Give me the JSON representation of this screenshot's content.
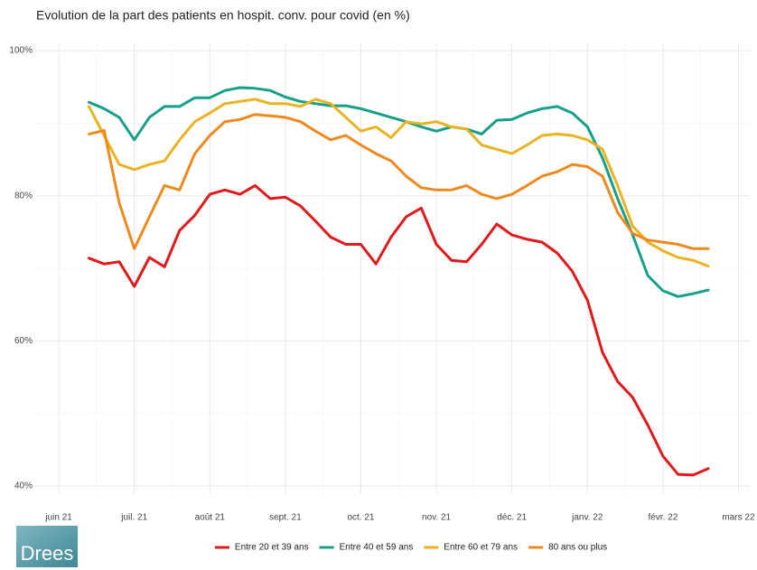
{
  "chart_data": {
    "type": "line",
    "title": "Evolution de la part des patients en hospit. conv. pour covid (en %)",
    "logo": "Drees",
    "x": [
      0.4,
      0.6,
      0.8,
      1.0,
      1.2,
      1.4,
      1.6,
      1.8,
      2.0,
      2.2,
      2.4,
      2.6,
      2.8,
      3.0,
      3.2,
      3.4,
      3.6,
      3.8,
      4.0,
      4.2,
      4.4,
      4.6,
      4.8,
      5.0,
      5.2,
      5.4,
      5.6,
      5.8,
      6.0,
      6.2,
      6.4,
      6.6,
      6.8,
      7.0,
      7.2,
      7.4,
      7.6,
      7.8,
      8.0,
      8.2,
      8.4,
      8.6
    ],
    "xlim": [
      -0.3,
      9.15
    ],
    "xticks": [
      {
        "value": 0,
        "label": "juin 21"
      },
      {
        "value": 1,
        "label": "juil. 21"
      },
      {
        "value": 2,
        "label": "août 21"
      },
      {
        "value": 3,
        "label": "sept. 21"
      },
      {
        "value": 4,
        "label": "oct. 21"
      },
      {
        "value": 5,
        "label": "nov. 21"
      },
      {
        "value": 6,
        "label": "déc. 21"
      },
      {
        "value": 7,
        "label": "janv. 22"
      },
      {
        "value": 8,
        "label": "févr. 22"
      },
      {
        "value": 9,
        "label": "mars 22"
      }
    ],
    "minor_xticks": [
      0.5,
      1.5,
      2.5,
      3.5,
      4.5,
      5.5,
      6.5,
      7.5,
      8.5
    ],
    "ylim": [
      39,
      101
    ],
    "yticks": [
      {
        "value": 40,
        "label": "40%"
      },
      {
        "value": 60,
        "label": "60%"
      },
      {
        "value": 80,
        "label": "80%"
      },
      {
        "value": 100,
        "label": "100%"
      }
    ],
    "minor_yticks": [
      50,
      70,
      90
    ],
    "grid": true,
    "legend": "bottom",
    "series": [
      {
        "name": "Entre 20 et 39 ans",
        "color": "#e0191c",
        "values": [
          71.4,
          70.6,
          70.9,
          67.5,
          71.5,
          70.2,
          75.2,
          77.3,
          80.2,
          80.8,
          80.2,
          81.4,
          79.6,
          79.8,
          78.6,
          76.5,
          74.3,
          73.3,
          73.3,
          70.6,
          74.3,
          77.1,
          78.3,
          73.3,
          71.1,
          70.9,
          73.3,
          76.1,
          74.6,
          74.0,
          73.6,
          72.1,
          69.6,
          65.6,
          58.4,
          54.4,
          52.2,
          48.4,
          44.1,
          41.6,
          41.5,
          42.4
        ]
      },
      {
        "name": "Entre 40 et 59 ans",
        "color": "#16a08a",
        "values": [
          92.9,
          92.0,
          90.8,
          87.7,
          90.8,
          92.3,
          92.3,
          93.5,
          93.5,
          94.5,
          94.9,
          94.8,
          94.5,
          93.6,
          93.0,
          92.7,
          92.4,
          92.4,
          92.0,
          91.4,
          90.8,
          90.2,
          89.5,
          88.9,
          89.5,
          89.2,
          88.5,
          90.4,
          90.5,
          91.4,
          92.0,
          92.3,
          91.4,
          89.5,
          85.2,
          79.6,
          74.6,
          69.0,
          66.9,
          66.1,
          66.5,
          67.0
        ]
      },
      {
        "name": "Entre 60 et 79 ans",
        "color": "#eab321",
        "values": [
          92.3,
          88.3,
          84.3,
          83.6,
          84.3,
          84.8,
          87.7,
          90.2,
          91.4,
          92.7,
          93.0,
          93.3,
          92.7,
          92.7,
          92.3,
          93.3,
          92.7,
          90.8,
          88.9,
          89.5,
          88.0,
          90.2,
          89.9,
          90.2,
          89.5,
          89.2,
          87.0,
          86.4,
          85.8,
          87.0,
          88.3,
          88.5,
          88.3,
          87.7,
          86.4,
          81.4,
          75.8,
          73.6,
          72.4,
          71.5,
          71.1,
          70.3
        ]
      },
      {
        "name": "80 ans ou plus",
        "color": "#ee8a1d",
        "values": [
          88.5,
          89.0,
          79.0,
          72.7,
          77.1,
          81.4,
          80.8,
          85.8,
          88.3,
          90.2,
          90.5,
          91.2,
          91.0,
          90.8,
          90.2,
          88.9,
          87.7,
          88.3,
          87.0,
          85.8,
          84.8,
          82.7,
          81.1,
          80.8,
          80.8,
          81.4,
          80.2,
          79.6,
          80.2,
          81.4,
          82.7,
          83.3,
          84.3,
          84.0,
          82.7,
          77.7,
          74.8,
          73.9,
          73.6,
          73.3,
          72.7,
          72.7
        ]
      }
    ]
  }
}
